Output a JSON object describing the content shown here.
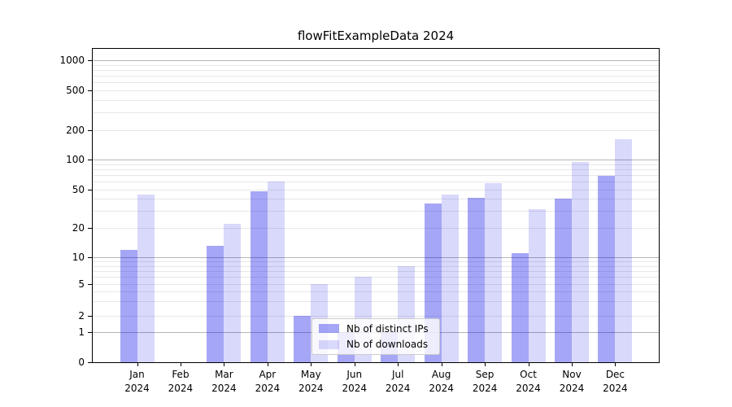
{
  "chart_data": {
    "type": "bar",
    "title": "flowFitExampleData 2024",
    "xlabel": "",
    "ylabel": "",
    "categories": [
      "Jan",
      "Feb",
      "Mar",
      "Apr",
      "May",
      "Jun",
      "Jul",
      "Aug",
      "Sep",
      "Oct",
      "Nov",
      "Dec"
    ],
    "year_label": "2024",
    "series": [
      {
        "name": "Nb of distinct IPs",
        "color": "rgba(0,0,230,0.35)",
        "values": [
          12,
          0,
          13,
          48,
          2,
          1,
          1,
          36,
          41,
          11,
          40,
          68
        ]
      },
      {
        "name": "Nb of downloads",
        "color": "rgba(0,0,230,0.15)",
        "values": [
          44,
          0,
          22,
          60,
          5,
          6,
          8,
          44,
          58,
          31,
          94,
          163
        ]
      }
    ],
    "y_axis": {
      "scale": "symlog",
      "ticks": [
        0,
        1,
        2,
        5,
        10,
        20,
        50,
        100,
        200,
        500,
        1000
      ],
      "minor_gridlines": [
        3,
        4,
        6,
        7,
        8,
        9,
        30,
        40,
        60,
        70,
        80,
        90,
        300,
        400,
        600,
        700,
        800,
        900
      ],
      "major_gridline_values": [
        1,
        10,
        100,
        1000
      ]
    },
    "grid": true,
    "legend_position": "lower-center",
    "colors": {
      "major_grid": "#b6b6b6",
      "minor_grid": "#e7e7e7",
      "spine": "#000000",
      "background": "#ffffff"
    }
  }
}
